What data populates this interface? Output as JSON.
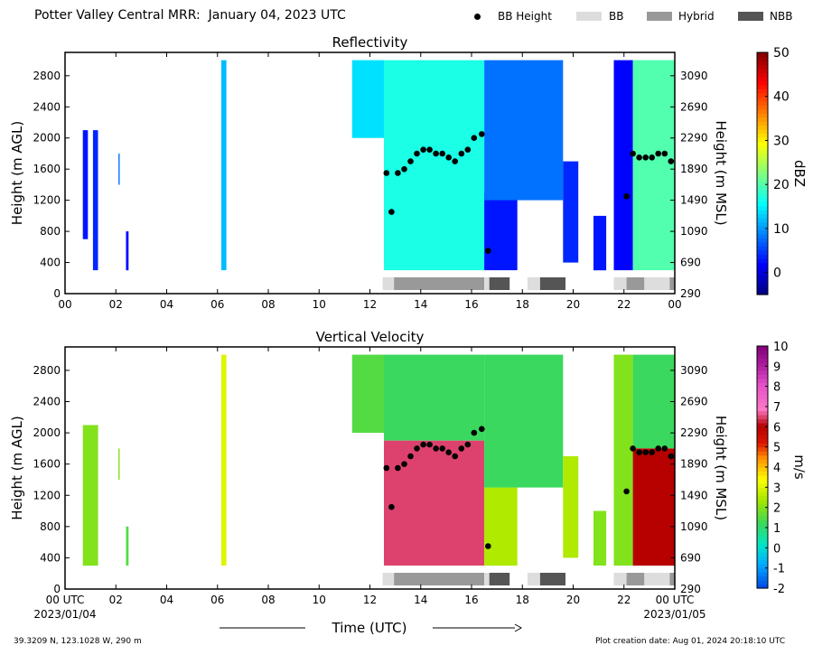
{
  "title": "Potter Valley Central MRR:  January 04, 2023 UTC",
  "legend": [
    {
      "label": "BB Height",
      "kind": "dot",
      "color": "#000000"
    },
    {
      "label": "BB",
      "kind": "swatch",
      "color": "#dddddd"
    },
    {
      "label": "Hybrid",
      "kind": "swatch",
      "color": "#999999"
    },
    {
      "label": "NBB",
      "kind": "swatch",
      "color": "#555555"
    }
  ],
  "x_axis": {
    "label": "Time (UTC)",
    "ticks_top": [
      "00",
      "02",
      "04",
      "06",
      "08",
      "10",
      "12",
      "14",
      "16",
      "18",
      "20",
      "22",
      "00"
    ],
    "ticks_bottom": [
      "00 UTC",
      "02",
      "04",
      "06",
      "08",
      "10",
      "12",
      "14",
      "16",
      "18",
      "20",
      "22",
      "00 UTC"
    ],
    "start_date": "2023/01/04",
    "end_date": "2023/01/05"
  },
  "footer": {
    "location": "39.3209 N, 123.1028 W, 290 m",
    "created": "Plot creation date: Aug 01, 2024 20:18:10 UTC"
  },
  "chart_data": [
    {
      "type": "heatmap",
      "title": "Reflectivity",
      "ylabel": "Height (m AGL)",
      "y2label": "Height (m MSL)",
      "colorbar_label": "dBZ",
      "xlim_hours": [
        0,
        24
      ],
      "ylim": [
        0,
        3100
      ],
      "yticks": [
        0,
        400,
        800,
        1200,
        1600,
        2000,
        2400,
        2800
      ],
      "y2ticks": [
        "290",
        "690",
        "1090",
        "1490",
        "1890",
        "2290",
        "2690",
        "3090"
      ],
      "colorbar_range": [
        -5,
        50
      ],
      "colorbar_ticks": [
        0,
        10,
        20,
        30,
        40,
        50
      ],
      "colormap": "jet",
      "echo_regions": [
        {
          "start": 0.7,
          "end": 0.9,
          "bottom": 700,
          "top": 2100,
          "value": 3
        },
        {
          "start": 1.1,
          "end": 1.3,
          "bottom": 300,
          "top": 2100,
          "value": 4
        },
        {
          "start": 2.1,
          "end": 2.15,
          "bottom": 1400,
          "top": 1800,
          "value": 8
        },
        {
          "start": 2.4,
          "end": 2.5,
          "bottom": 300,
          "top": 800,
          "value": 2
        },
        {
          "start": 6.15,
          "end": 6.35,
          "bottom": 300,
          "top": 3000,
          "value": 12
        },
        {
          "start": 11.3,
          "end": 12.55,
          "bottom": 2000,
          "top": 3000,
          "value": 14
        },
        {
          "start": 12.55,
          "end": 16.5,
          "bottom": 300,
          "top": 3000,
          "value": 17
        },
        {
          "start": 16.5,
          "end": 17.8,
          "bottom": 300,
          "top": 1300,
          "value": 3
        },
        {
          "start": 16.5,
          "end": 19.6,
          "bottom": 1200,
          "top": 3000,
          "value": 8
        },
        {
          "start": 19.6,
          "end": 20.2,
          "bottom": 400,
          "top": 1700,
          "value": 4
        },
        {
          "start": 20.8,
          "end": 21.3,
          "bottom": 300,
          "top": 1000,
          "value": 3
        },
        {
          "start": 21.6,
          "end": 22.35,
          "bottom": 300,
          "top": 3000,
          "value": 2
        },
        {
          "start": 22.35,
          "end": 24.0,
          "bottom": 300,
          "top": 3000,
          "value": 20
        }
      ],
      "bb_height": {
        "times": [
          12.65,
          12.85,
          13.1,
          13.35,
          13.6,
          13.85,
          14.1,
          14.35,
          14.6,
          14.85,
          15.1,
          15.35,
          15.6,
          15.85,
          16.1,
          16.4,
          16.65,
          22.1,
          22.35,
          22.6,
          22.85,
          23.1,
          23.35,
          23.6,
          23.85
        ],
        "heights": [
          1550,
          1050,
          1550,
          1600,
          1700,
          1800,
          1850,
          1850,
          1800,
          1800,
          1750,
          1700,
          1800,
          1850,
          2000,
          2050,
          550,
          1250,
          1800,
          1750,
          1750,
          1750,
          1800,
          1800,
          1700
        ]
      },
      "bb_type": [
        {
          "start": 12.5,
          "end": 12.95,
          "type": "BB"
        },
        {
          "start": 12.95,
          "end": 16.5,
          "type": "Hybrid"
        },
        {
          "start": 16.5,
          "end": 16.7,
          "type": "BB"
        },
        {
          "start": 16.7,
          "end": 17.5,
          "type": "NBB"
        },
        {
          "start": 18.2,
          "end": 18.7,
          "type": "BB"
        },
        {
          "start": 18.7,
          "end": 19.7,
          "type": "NBB"
        },
        {
          "start": 21.6,
          "end": 22.1,
          "type": "BB"
        },
        {
          "start": 22.1,
          "end": 22.8,
          "type": "Hybrid"
        },
        {
          "start": 22.8,
          "end": 23.3,
          "type": "BB"
        },
        {
          "start": 23.3,
          "end": 23.8,
          "type": "BB"
        },
        {
          "start": 23.8,
          "end": 24.0,
          "type": "Hybrid"
        }
      ]
    },
    {
      "type": "heatmap",
      "title": "Vertical Velocity",
      "ylabel": "Height (m AGL)",
      "y2label": "Height (m MSL)",
      "colorbar_label": "m/s",
      "xlim_hours": [
        0,
        24
      ],
      "ylim": [
        0,
        3100
      ],
      "yticks": [
        0,
        400,
        800,
        1200,
        1600,
        2000,
        2400,
        2800
      ],
      "y2ticks": [
        "290",
        "690",
        "1090",
        "1490",
        "1890",
        "2290",
        "2690",
        "3090"
      ],
      "colorbar_range": [
        -2,
        10
      ],
      "colorbar_ticks": [
        -2,
        -1,
        0,
        1,
        2,
        3,
        4,
        5,
        6,
        7,
        8,
        9,
        10
      ],
      "colormap": "velocity",
      "echo_regions": [
        {
          "start": 0.7,
          "end": 1.3,
          "bottom": 300,
          "top": 2100,
          "value": 2
        },
        {
          "start": 2.1,
          "end": 2.15,
          "bottom": 1400,
          "top": 1800,
          "value": 2
        },
        {
          "start": 2.4,
          "end": 2.5,
          "bottom": 300,
          "top": 800,
          "value": 1.5
        },
        {
          "start": 6.15,
          "end": 6.35,
          "bottom": 300,
          "top": 3000,
          "value": 3
        },
        {
          "start": 11.3,
          "end": 12.55,
          "bottom": 2000,
          "top": 3000,
          "value": 1.5
        },
        {
          "start": 12.55,
          "end": 16.5,
          "bottom": 1900,
          "top": 3000,
          "value": 1.2
        },
        {
          "start": 12.55,
          "end": 16.5,
          "bottom": 300,
          "top": 1900,
          "value": 6.5
        },
        {
          "start": 16.5,
          "end": 17.8,
          "bottom": 300,
          "top": 1300,
          "value": 2.5
        },
        {
          "start": 16.5,
          "end": 19.6,
          "bottom": 1300,
          "top": 3000,
          "value": 1.2
        },
        {
          "start": 19.6,
          "end": 20.2,
          "bottom": 400,
          "top": 1700,
          "value": 2.5
        },
        {
          "start": 20.8,
          "end": 21.3,
          "bottom": 300,
          "top": 1000,
          "value": 2
        },
        {
          "start": 21.6,
          "end": 22.35,
          "bottom": 300,
          "top": 3000,
          "value": 2
        },
        {
          "start": 22.35,
          "end": 24.0,
          "bottom": 1800,
          "top": 3000,
          "value": 1.2
        },
        {
          "start": 22.35,
          "end": 24.0,
          "bottom": 300,
          "top": 1800,
          "value": 6
        }
      ],
      "bb_height": {
        "times": [
          12.65,
          12.85,
          13.1,
          13.35,
          13.6,
          13.85,
          14.1,
          14.35,
          14.6,
          14.85,
          15.1,
          15.35,
          15.6,
          15.85,
          16.1,
          16.4,
          16.65,
          22.1,
          22.35,
          22.6,
          22.85,
          23.1,
          23.35,
          23.6,
          23.85
        ],
        "heights": [
          1550,
          1050,
          1550,
          1600,
          1700,
          1800,
          1850,
          1850,
          1800,
          1800,
          1750,
          1700,
          1800,
          1850,
          2000,
          2050,
          550,
          1250,
          1800,
          1750,
          1750,
          1750,
          1800,
          1800,
          1700
        ]
      },
      "bb_type": [
        {
          "start": 12.5,
          "end": 12.95,
          "type": "BB"
        },
        {
          "start": 12.95,
          "end": 16.5,
          "type": "Hybrid"
        },
        {
          "start": 16.5,
          "end": 16.7,
          "type": "BB"
        },
        {
          "start": 16.7,
          "end": 17.5,
          "type": "NBB"
        },
        {
          "start": 18.2,
          "end": 18.7,
          "type": "BB"
        },
        {
          "start": 18.7,
          "end": 19.7,
          "type": "NBB"
        },
        {
          "start": 21.6,
          "end": 22.1,
          "type": "BB"
        },
        {
          "start": 22.1,
          "end": 22.8,
          "type": "Hybrid"
        },
        {
          "start": 22.8,
          "end": 23.3,
          "type": "BB"
        },
        {
          "start": 23.3,
          "end": 23.8,
          "type": "BB"
        },
        {
          "start": 23.8,
          "end": 24.0,
          "type": "Hybrid"
        }
      ]
    }
  ]
}
